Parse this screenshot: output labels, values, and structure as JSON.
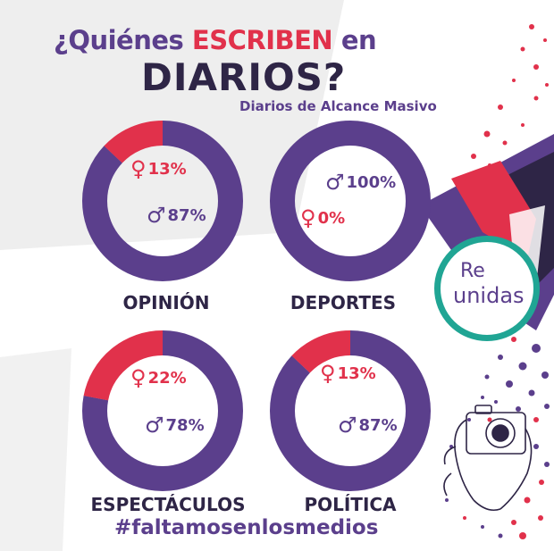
{
  "header": {
    "title_pre": "¿Quiénes",
    "title_highlight": "ESCRIBEN",
    "title_post": "en",
    "title_line2": "DIARIOS?",
    "subtitle": "Diarios de Alcance Masivo"
  },
  "chart_data": [
    {
      "type": "pie",
      "category": "OPINIÓN",
      "female_pct": 13,
      "male_pct": 87,
      "female_label": "13%",
      "male_label": "87%"
    },
    {
      "type": "pie",
      "category": "DEPORTES",
      "female_pct": 0,
      "male_pct": 100,
      "female_label": "0%",
      "male_label": "100%"
    },
    {
      "type": "pie",
      "category": "ESPECTÁCULOS",
      "female_pct": 22,
      "male_pct": 78,
      "female_label": "22%",
      "male_label": "78%"
    },
    {
      "type": "pie",
      "category": "POLÍTICA",
      "female_pct": 13,
      "male_pct": 87,
      "female_label": "13%",
      "male_label": "87%"
    }
  ],
  "symbols": {
    "female": "♀",
    "male": "♂"
  },
  "colors": {
    "female": "#e1314b",
    "male": "#5b3f8c",
    "dark": "#2e2546",
    "teal": "#20a594"
  },
  "hashtag": "#faltamosenlosmedios",
  "logo": {
    "line1": "Re",
    "line2": "unidas"
  }
}
